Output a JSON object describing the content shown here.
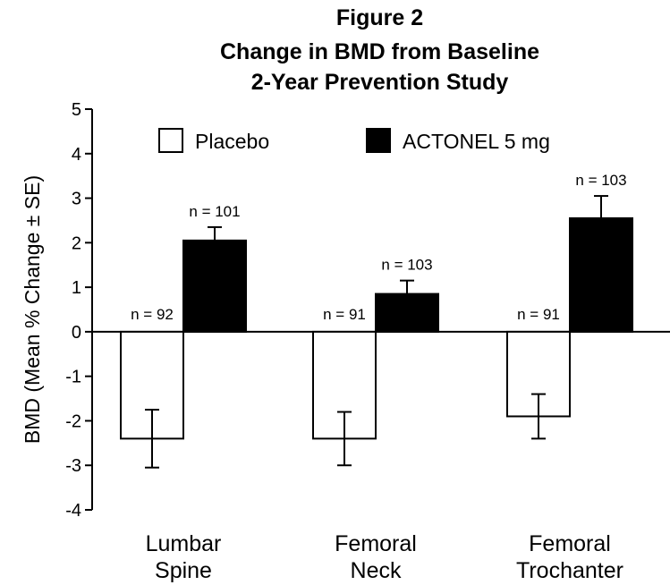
{
  "figure_label": "Figure 2",
  "chart_data": {
    "type": "bar",
    "title": "Change in BMD from Baseline",
    "subtitle": "2-Year Prevention Study",
    "xlabel": "",
    "ylabel": "BMD (Mean % Change ± SE)",
    "ylim": [
      -4,
      5
    ],
    "yticks": [
      5,
      4,
      3,
      2,
      1,
      0,
      -1,
      -2,
      -3,
      -4
    ],
    "categories": [
      [
        "Lumbar",
        "Spine"
      ],
      [
        "Femoral",
        "Neck"
      ],
      [
        "Femoral",
        "Trochanter"
      ]
    ],
    "legend_position": "top",
    "series": [
      {
        "name": "Placebo",
        "fill": "#ffffff",
        "values": [
          -2.4,
          -2.4,
          -1.9
        ],
        "errors": [
          0.65,
          0.6,
          0.5
        ],
        "n_labels": [
          "n = 92",
          "n = 91",
          "n = 91"
        ]
      },
      {
        "name": "ACTONEL 5 mg",
        "fill": "#000000",
        "values": [
          2.05,
          0.85,
          2.55
        ],
        "errors": [
          0.3,
          0.3,
          0.5
        ],
        "n_labels": [
          "n = 101",
          "n = 103",
          "n = 103"
        ]
      }
    ]
  }
}
